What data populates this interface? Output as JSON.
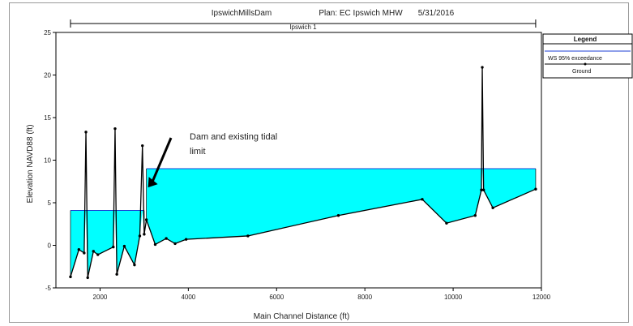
{
  "chart_data": {
    "type": "area",
    "title": {
      "project": "IpswichMillsDam",
      "plan": "Plan: EC Ipswich MHW",
      "date": "5/31/2016"
    },
    "reach_label": "Ipswich 1",
    "xlabel": "Main Channel Distance (ft)",
    "ylabel": "Elevation NAVD88 (ft)",
    "xlim": [
      1000,
      12000
    ],
    "ylim": [
      -5,
      25
    ],
    "x_ticks": [
      2000,
      4000,
      6000,
      8000,
      10000,
      12000
    ],
    "y_ticks": [
      -5,
      0,
      5,
      10,
      15,
      20,
      25
    ],
    "grid": false,
    "reach_extent": [
      1330,
      11870
    ],
    "series": [
      {
        "name": "WS 95% exceedance",
        "kind": "water_surface",
        "color": "#00ffff",
        "line_color": "#1c3fd6",
        "segments": [
          {
            "x": [
              1330,
              3000
            ],
            "y": [
              4.1,
              4.1
            ]
          },
          {
            "x": [
              3050,
              11870
            ],
            "y": [
              9.0,
              9.0
            ]
          }
        ]
      },
      {
        "name": "Ground",
        "kind": "ground",
        "color": "#000000",
        "points": [
          {
            "x": 1330,
            "y": -3.7
          },
          {
            "x": 1520,
            "y": -0.5
          },
          {
            "x": 1640,
            "y": -0.9
          },
          {
            "x": 1680,
            "y": 13.3
          },
          {
            "x": 1720,
            "y": -3.8
          },
          {
            "x": 1850,
            "y": -0.7
          },
          {
            "x": 1950,
            "y": -1.1
          },
          {
            "x": 2300,
            "y": -0.2
          },
          {
            "x": 2340,
            "y": 13.7
          },
          {
            "x": 2380,
            "y": -3.4
          },
          {
            "x": 2550,
            "y": -0.1
          },
          {
            "x": 2780,
            "y": -2.3
          },
          {
            "x": 2900,
            "y": 1.1
          },
          {
            "x": 2960,
            "y": 11.7
          },
          {
            "x": 3000,
            "y": 1.3
          },
          {
            "x": 3050,
            "y": 3.0
          },
          {
            "x": 3250,
            "y": 0.1
          },
          {
            "x": 3500,
            "y": 0.8
          },
          {
            "x": 3700,
            "y": 0.2
          },
          {
            "x": 3950,
            "y": 0.7
          },
          {
            "x": 5350,
            "y": 1.1
          },
          {
            "x": 7400,
            "y": 3.5
          },
          {
            "x": 9300,
            "y": 5.4
          },
          {
            "x": 9850,
            "y": 2.6
          },
          {
            "x": 10500,
            "y": 3.5
          },
          {
            "x": 10640,
            "y": 6.5
          },
          {
            "x": 10660,
            "y": 20.9
          },
          {
            "x": 10690,
            "y": 6.5
          },
          {
            "x": 10900,
            "y": 4.4
          },
          {
            "x": 11870,
            "y": 6.6
          }
        ]
      }
    ],
    "annotation": {
      "text_line1": "Dam and existing tidal",
      "text_line2": "limit",
      "arrow_target": {
        "x": 3050,
        "y": 6.8
      }
    },
    "legend": {
      "title": "Legend",
      "position": "top-right",
      "entries": [
        "WS 95% exceedance",
        "Ground"
      ]
    }
  }
}
